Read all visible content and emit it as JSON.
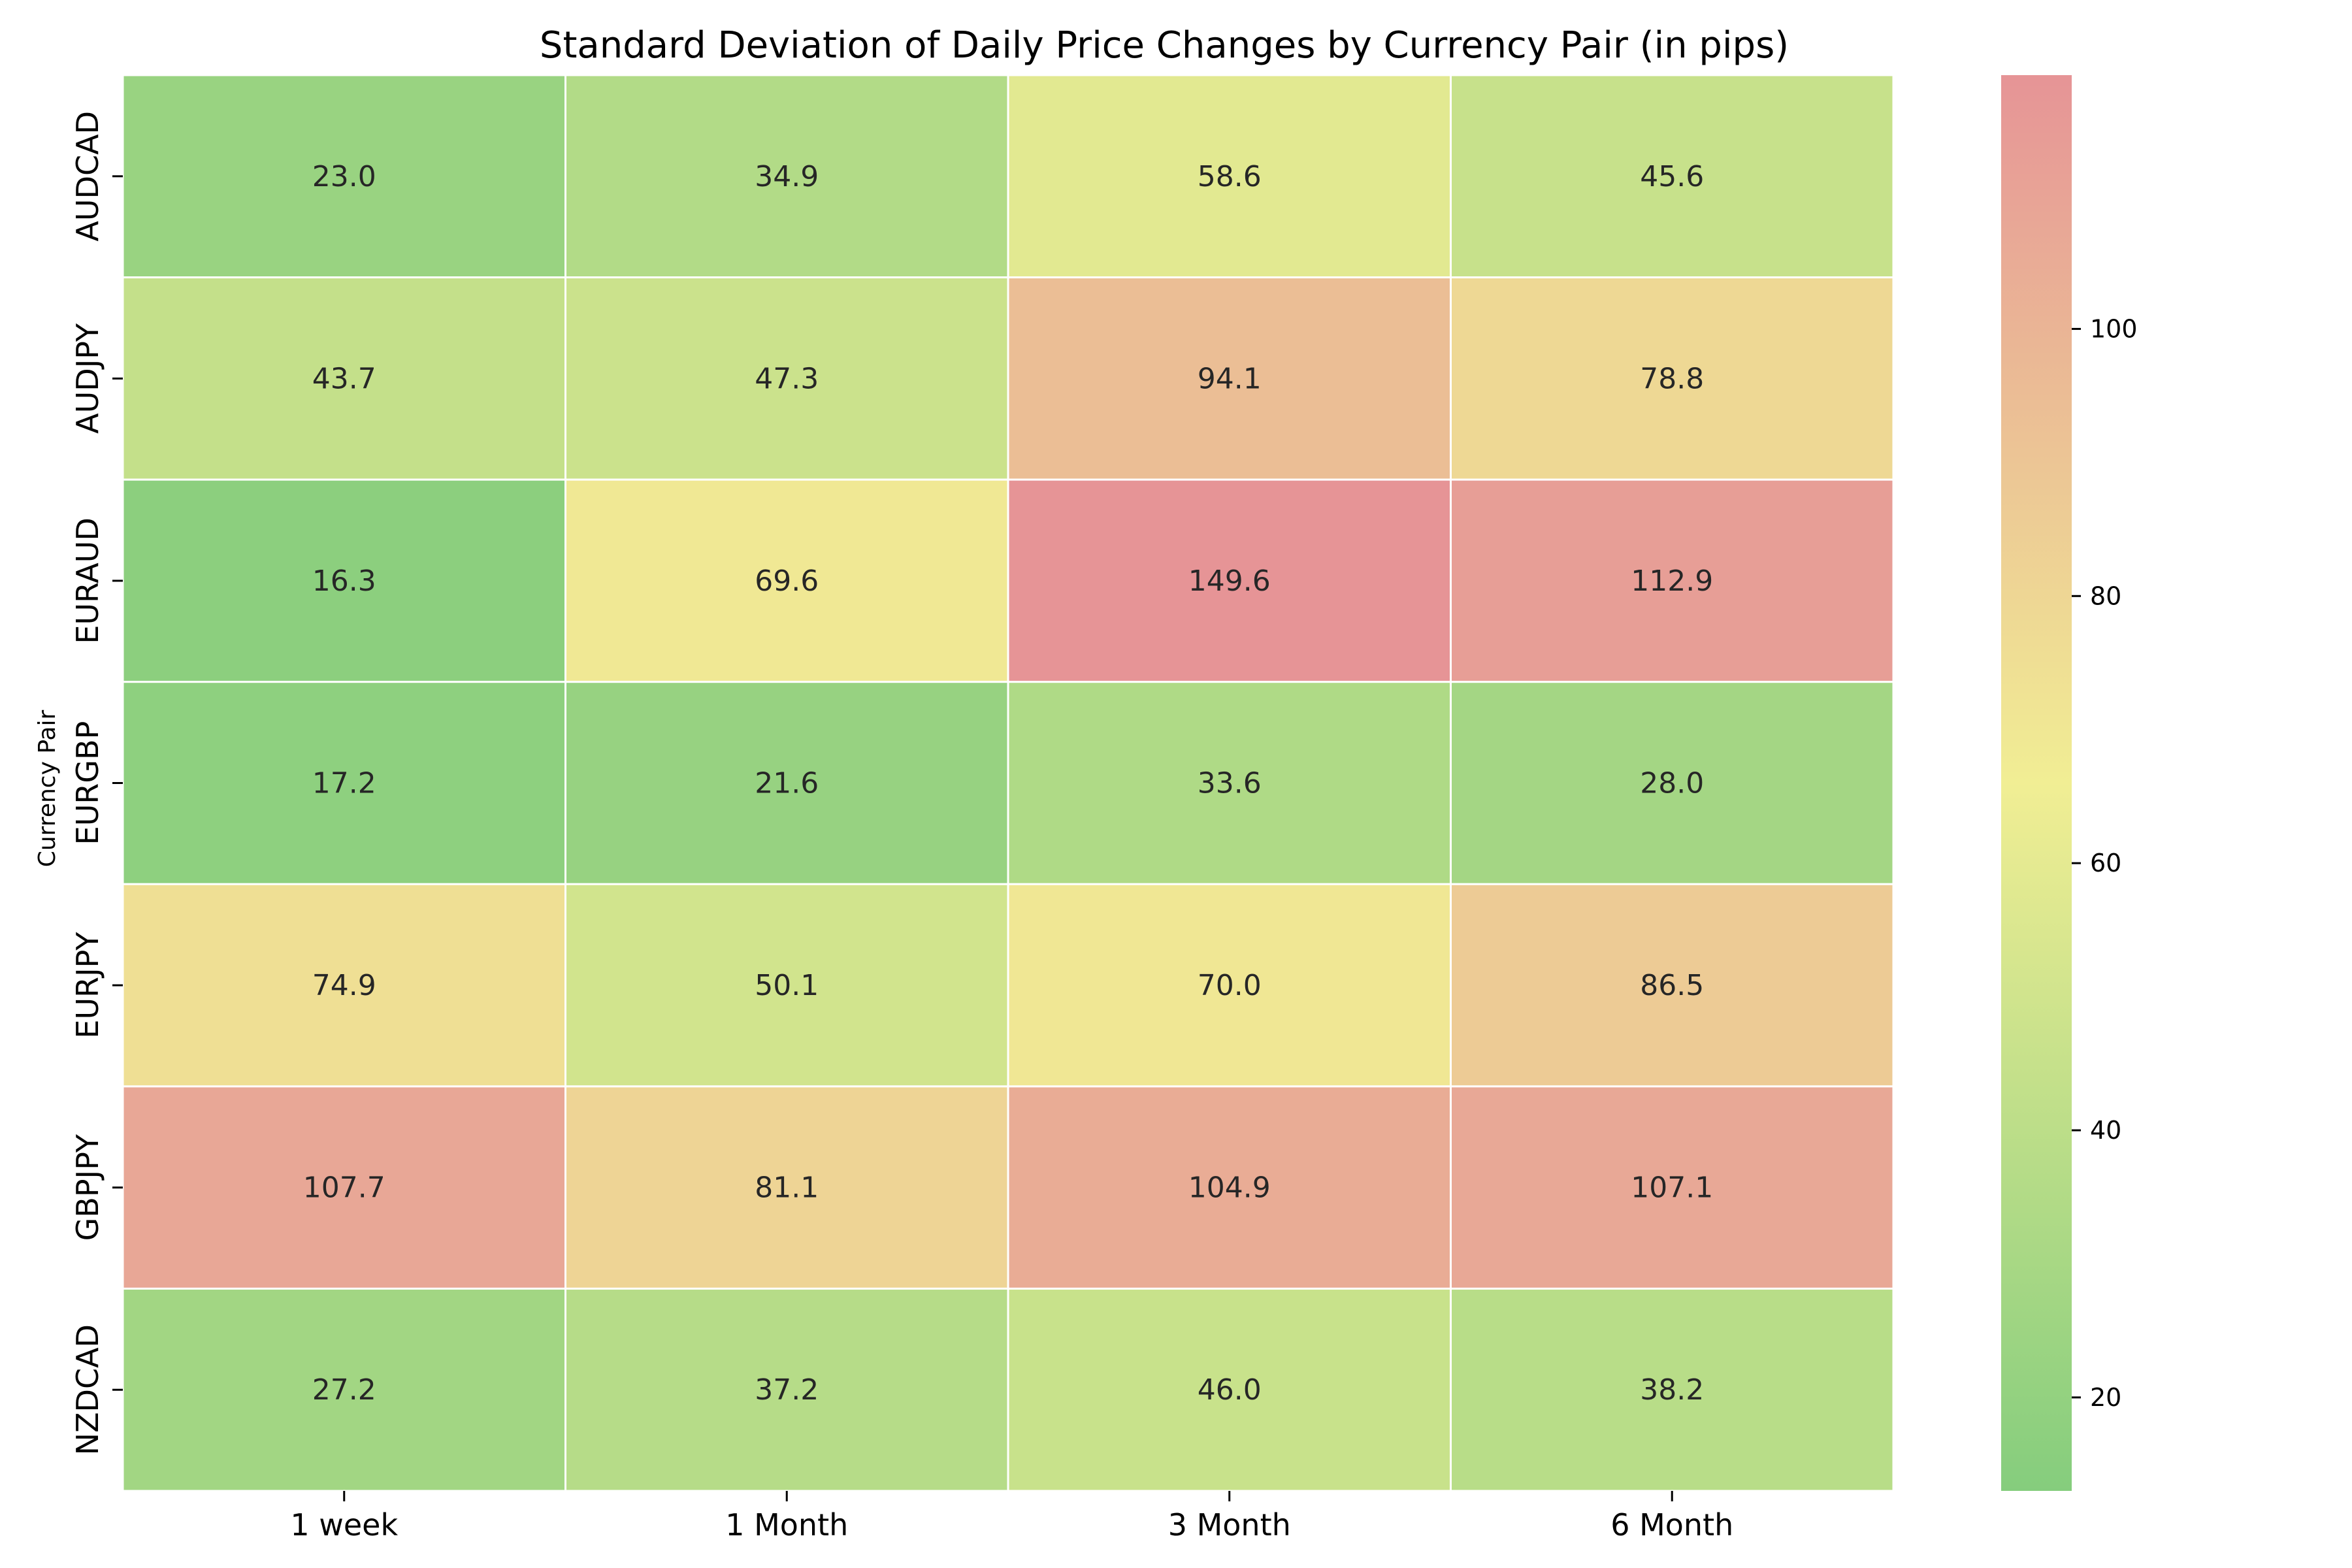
{
  "chart_data": {
    "type": "heatmap",
    "title": "Standard Deviation of Daily Price Changes by Currency Pair (in pips)",
    "xlabel": "",
    "ylabel": "Currency Pair",
    "columns": [
      "1 week",
      "1 Month",
      "3 Month",
      "6 Month"
    ],
    "rows": [
      "AUDCAD",
      "AUDJPY",
      "EURAUD",
      "EURGBP",
      "EURJPY",
      "GBPJPY",
      "NZDCAD"
    ],
    "values": [
      [
        23.0,
        34.9,
        58.6,
        45.6
      ],
      [
        43.7,
        47.3,
        94.1,
        78.8
      ],
      [
        16.3,
        69.6,
        149.6,
        112.9
      ],
      [
        17.2,
        21.6,
        33.6,
        28.0
      ],
      [
        74.9,
        50.1,
        70.0,
        86.5
      ],
      [
        107.7,
        81.1,
        104.9,
        107.1
      ],
      [
        27.2,
        37.2,
        46.0,
        38.2
      ]
    ],
    "value_format": "0.0",
    "colorbar": {
      "min": 13,
      "max": 119,
      "ticks": [
        20,
        40,
        60,
        80,
        100
      ]
    },
    "colors": {
      "low": "#85cd7d",
      "mid": "#f1ee94",
      "high": "#e69496",
      "grid": "#ffffff"
    }
  }
}
